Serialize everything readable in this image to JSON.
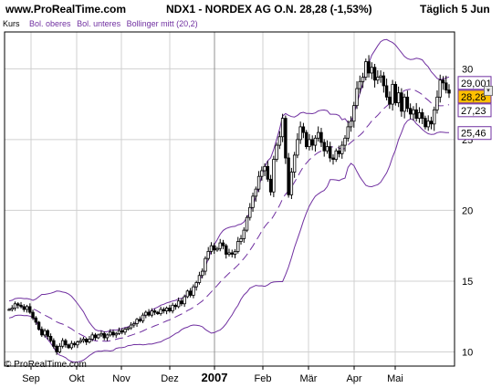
{
  "header": {
    "site": "www.ProRealTime.com",
    "title": "NDX1 - NORDEX AG O.N.   28,28 (-1,53%)",
    "period": "Täglich  5 Jun"
  },
  "legend": {
    "price": "Kurs",
    "upper": "Bol. oberes",
    "lower": "Bol. unteres",
    "middle": "Bollinger mitt (20,2)"
  },
  "copyright": "© ProRealTime.com",
  "chart_data": {
    "type": "candlestick",
    "x_labels": [
      "Sep",
      "Okt",
      "Nov",
      "Dez",
      "2007",
      "Feb",
      "Mär",
      "Apr",
      "Mai"
    ],
    "y_ticks": [
      10,
      15,
      20,
      25,
      30
    ],
    "ylim": [
      9.0,
      32.6
    ],
    "badges": [
      {
        "label": "29,001",
        "value": 29.0,
        "style": "outline-purple"
      },
      {
        "label": "28,28",
        "value": 28.28,
        "style": "filled-orange"
      },
      {
        "label": "27,23",
        "value": 27.23,
        "style": "outline-purple"
      },
      {
        "label": "25,46",
        "value": 25.46,
        "style": "outline-purple"
      }
    ],
    "colors": {
      "price": "#000000",
      "bands": "#7030a0",
      "grid": "#d0d0d0",
      "last_badge": "#ffc000",
      "cursor": "#909090"
    },
    "cursor_at": "2007",
    "close_series": [
      13.0,
      13.1,
      13.4,
      13.3,
      13.2,
      13.0,
      13.2,
      12.8,
      12.4,
      12.1,
      11.6,
      11.2,
      11.5,
      11.1,
      10.8,
      10.4,
      10.0,
      10.4,
      10.8,
      10.5,
      10.3,
      10.6,
      10.5,
      10.7,
      10.8,
      10.9,
      10.7,
      10.9,
      11.2,
      11.0,
      11.2,
      11.3,
      11.0,
      11.2,
      11.4,
      11.2,
      11.3,
      11.5,
      11.4,
      11.6,
      11.7,
      11.9,
      12.0,
      12.3,
      12.2,
      12.6,
      12.8,
      12.6,
      12.9,
      12.8,
      12.7,
      13.0,
      12.9,
      13.1,
      12.9,
      13.3,
      13.2,
      13.6,
      13.4,
      13.9,
      14.3,
      14.0,
      14.6,
      14.9,
      15.4,
      15.7,
      16.6,
      17.1,
      17.5,
      17.2,
      17.3,
      17.7,
      17.5,
      16.9,
      17.0,
      16.9,
      17.1,
      17.8,
      18.0,
      18.6,
      19.5,
      20.2,
      21.0,
      21.5,
      22.4,
      22.8,
      23.1,
      22.2,
      21.3,
      23.6,
      24.6,
      25.2,
      26.5,
      23.7,
      21.1,
      22.7,
      23.9,
      25.0,
      25.9,
      25.5,
      24.5,
      25.0,
      24.6,
      25.1,
      25.5,
      24.8,
      24.2,
      24.5,
      23.7,
      23.6,
      24.2,
      24.0,
      24.6,
      25.1,
      25.9,
      26.3,
      27.4,
      28.6,
      29.1,
      29.4,
      30.5,
      29.7,
      30.1,
      29.2,
      29.4,
      29.5,
      28.8,
      28.0,
      27.5,
      28.9,
      27.6,
      28.3,
      27.0,
      28.0,
      27.2,
      26.8,
      27.1,
      26.5,
      26.9,
      26.5,
      25.9,
      26.3,
      26.1,
      27.1,
      28.0,
      29.2,
      29.0,
      28.5,
      28.28
    ]
  }
}
